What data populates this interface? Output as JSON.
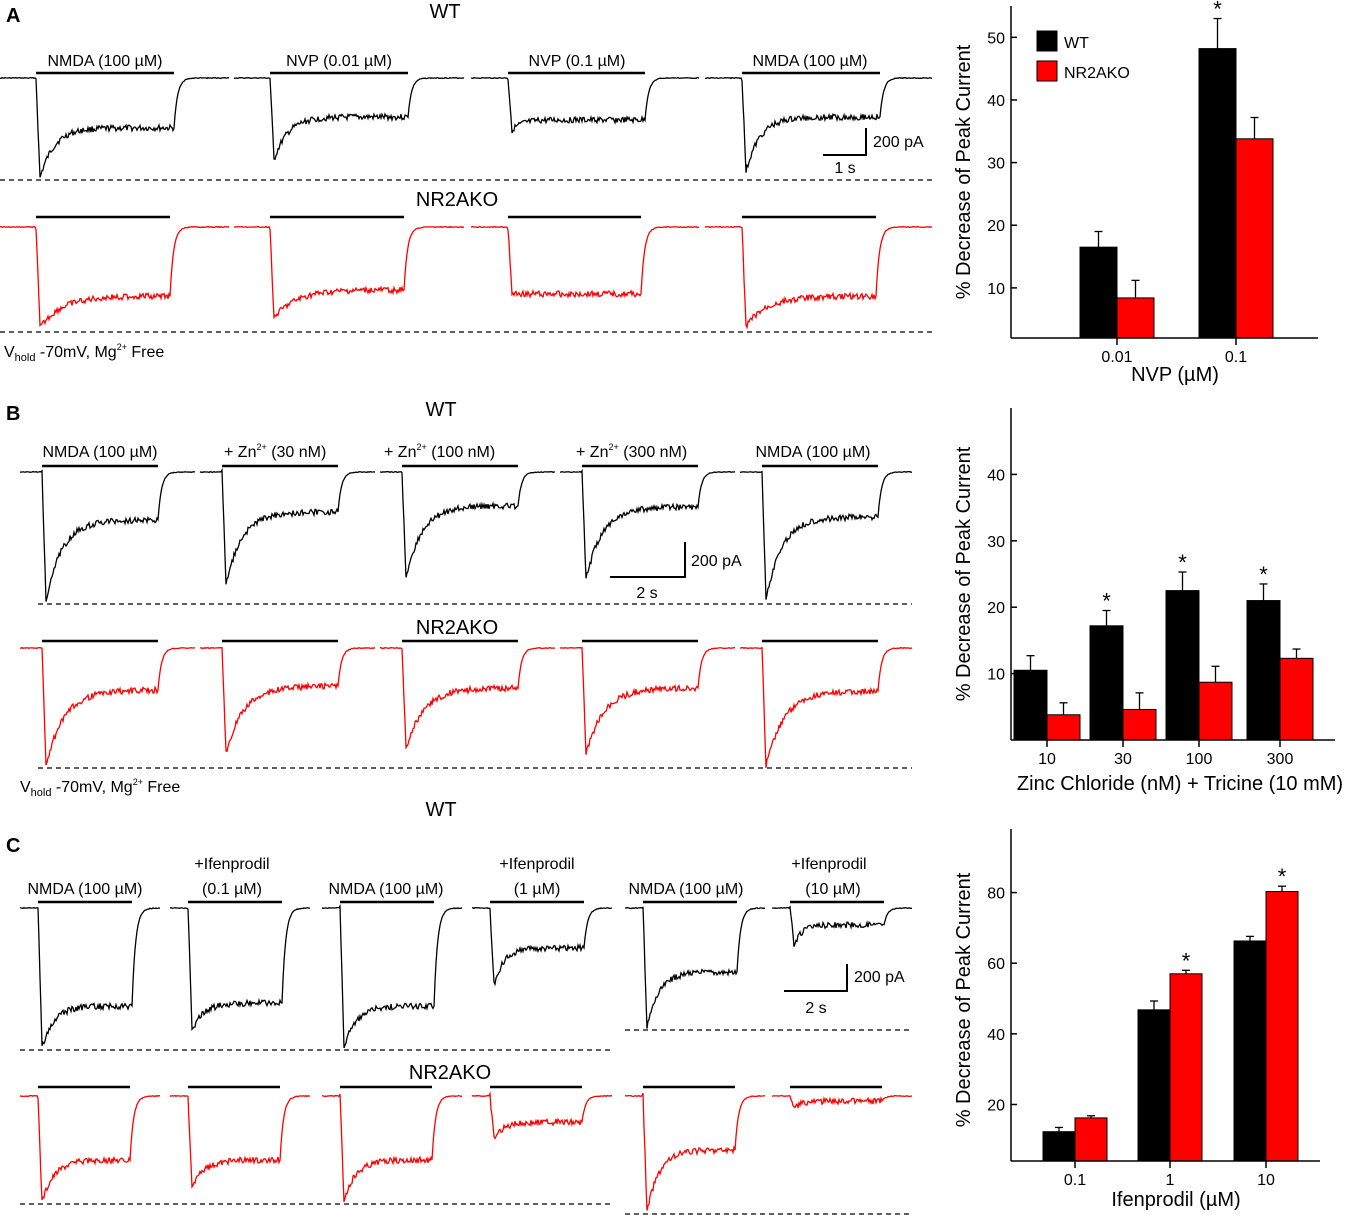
{
  "colors": {
    "wt": "#000000",
    "ko": "#ff0000"
  },
  "common": {
    "wt": "WT",
    "ko": "NR2AKO",
    "ylabel": "% Decrease of Peak Current",
    "vhold_pre": "V",
    "vhold_sub": "hold",
    "vhold_mid": " -70mV, Mg",
    "vhold_sup": "2+",
    "vhold_post": " Free",
    "star": "*"
  },
  "panelA": {
    "label": "A",
    "drugs": [
      "NMDA (100 µM)",
      "NVP (0.01 µM)",
      "NVP (0.1 µM)",
      "NMDA (100 µM)"
    ],
    "scale_y": "200 pA",
    "scale_x": "1 s"
  },
  "panelB": {
    "label": "B",
    "drugs": [
      "NMDA (100 µM)",
      "+ Zn",
      "+ Zn",
      "+ Zn",
      "NMDA (100 µM)"
    ],
    "zn_sup": "2+",
    "zn_conc": [
      "(30 nM)",
      "(100 nM)",
      "(300 nM)"
    ],
    "scale_y": "200 pA",
    "scale_x": "2 s"
  },
  "panelC": {
    "label": "C",
    "drugs_top": [
      "+Ifenprodil",
      "+Ifenprodil",
      "+Ifenprodil"
    ],
    "drugs": [
      "NMDA (100 µM)",
      "(0.1 µM)",
      "NMDA (100 µM)",
      "(1 µM)",
      "NMDA (100 µM)",
      "(10 µM)"
    ],
    "scale_y": "200 pA",
    "scale_x": "2 s"
  },
  "chart_data": [
    {
      "type": "bar",
      "title": "",
      "categories": [
        "0.01",
        "0.1"
      ],
      "series": [
        {
          "name": "WT",
          "values": [
            16.5,
            48.2
          ],
          "errors": [
            2.5,
            4.8
          ]
        },
        {
          "name": "NR2AKO",
          "values": [
            8.4,
            33.8
          ],
          "errors": [
            2.8,
            3.4
          ]
        }
      ],
      "xlabel": "NVP (µM)",
      "ylabel": "% Decrease of Peak Current",
      "ylim": [
        2,
        55
      ],
      "yticks": [
        10,
        20,
        30,
        40,
        50
      ],
      "significant": [
        "",
        "*"
      ],
      "legend": "top-left"
    },
    {
      "type": "bar",
      "title": "",
      "categories": [
        "10",
        "30",
        "100",
        "300"
      ],
      "series": [
        {
          "name": "WT",
          "values": [
            10.5,
            17.2,
            22.5,
            21.0
          ],
          "errors": [
            2.2,
            2.3,
            2.8,
            2.5
          ]
        },
        {
          "name": "NR2AKO",
          "values": [
            3.8,
            4.6,
            8.7,
            12.3
          ],
          "errors": [
            1.8,
            2.5,
            2.4,
            1.4
          ]
        }
      ],
      "xlabel": "Zinc Chloride (nM) + Tricine (10 mM)",
      "ylabel": "% Decrease of Peak Current",
      "ylim": [
        0,
        50
      ],
      "yticks": [
        10,
        20,
        30,
        40
      ],
      "significant": [
        "",
        "*",
        "*",
        "*"
      ]
    },
    {
      "type": "bar",
      "title": "",
      "categories": [
        "0.1",
        "1",
        "10"
      ],
      "series": [
        {
          "name": "WT",
          "values": [
            12.3,
            46.8,
            66.3
          ],
          "errors": [
            1.2,
            2.5,
            1.3
          ]
        },
        {
          "name": "NR2AKO",
          "values": [
            16.2,
            57.0,
            80.3
          ],
          "errors": [
            0.6,
            1.0,
            1.5
          ]
        }
      ],
      "xlabel": "Ifenprodil (µM)",
      "ylabel": "% Decrease of Peak Current",
      "ylim": [
        4,
        98
      ],
      "yticks": [
        20,
        40,
        60,
        80
      ],
      "significant": [
        "",
        "*",
        "*"
      ]
    }
  ]
}
